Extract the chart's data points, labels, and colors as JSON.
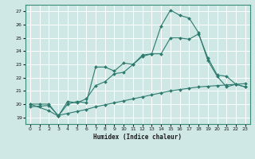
{
  "title": "",
  "xlabel": "Humidex (Indice chaleur)",
  "ylabel": "",
  "bg_color": "#cfe8e5",
  "grid_color": "#ffffff",
  "line_color": "#2d7a6e",
  "xlim": [
    -0.5,
    23.5
  ],
  "ylim": [
    18.5,
    27.5
  ],
  "xticks": [
    0,
    1,
    2,
    3,
    4,
    5,
    6,
    7,
    8,
    9,
    10,
    11,
    12,
    13,
    14,
    15,
    16,
    17,
    18,
    19,
    20,
    21,
    22,
    23
  ],
  "yticks": [
    19,
    20,
    21,
    22,
    23,
    24,
    25,
    26,
    27
  ],
  "line1_x": [
    0,
    1,
    2,
    3,
    4,
    5,
    6,
    7,
    8,
    9,
    10,
    11,
    12,
    13,
    14,
    15,
    16,
    17,
    18,
    19,
    20,
    21,
    22,
    23
  ],
  "line1_y": [
    20.0,
    20.0,
    20.0,
    19.1,
    20.0,
    20.2,
    20.1,
    22.8,
    22.8,
    22.5,
    23.1,
    23.0,
    23.7,
    23.8,
    25.9,
    27.1,
    26.7,
    26.5,
    25.4,
    23.3,
    22.1,
    21.3,
    21.5,
    21.3
  ],
  "line2_x": [
    0,
    2,
    3,
    4,
    5,
    6,
    7,
    8,
    9,
    10,
    11,
    12,
    13,
    14,
    15,
    16,
    17,
    18,
    19,
    20,
    21,
    22,
    23
  ],
  "line2_y": [
    20.0,
    19.5,
    19.1,
    20.2,
    20.1,
    20.4,
    21.4,
    21.7,
    22.3,
    22.4,
    23.0,
    23.6,
    23.8,
    23.8,
    25.0,
    25.0,
    24.9,
    25.3,
    23.5,
    22.2,
    22.1,
    21.5,
    21.3
  ],
  "line3_x": [
    0,
    1,
    2,
    3,
    4,
    5,
    6,
    7,
    8,
    9,
    10,
    11,
    12,
    13,
    14,
    15,
    16,
    17,
    18,
    19,
    20,
    21,
    22,
    23
  ],
  "line3_y": [
    19.8,
    19.85,
    19.9,
    19.15,
    19.3,
    19.45,
    19.6,
    19.8,
    19.95,
    20.1,
    20.25,
    20.4,
    20.55,
    20.7,
    20.85,
    21.0,
    21.1,
    21.2,
    21.3,
    21.35,
    21.4,
    21.45,
    21.5,
    21.55
  ]
}
